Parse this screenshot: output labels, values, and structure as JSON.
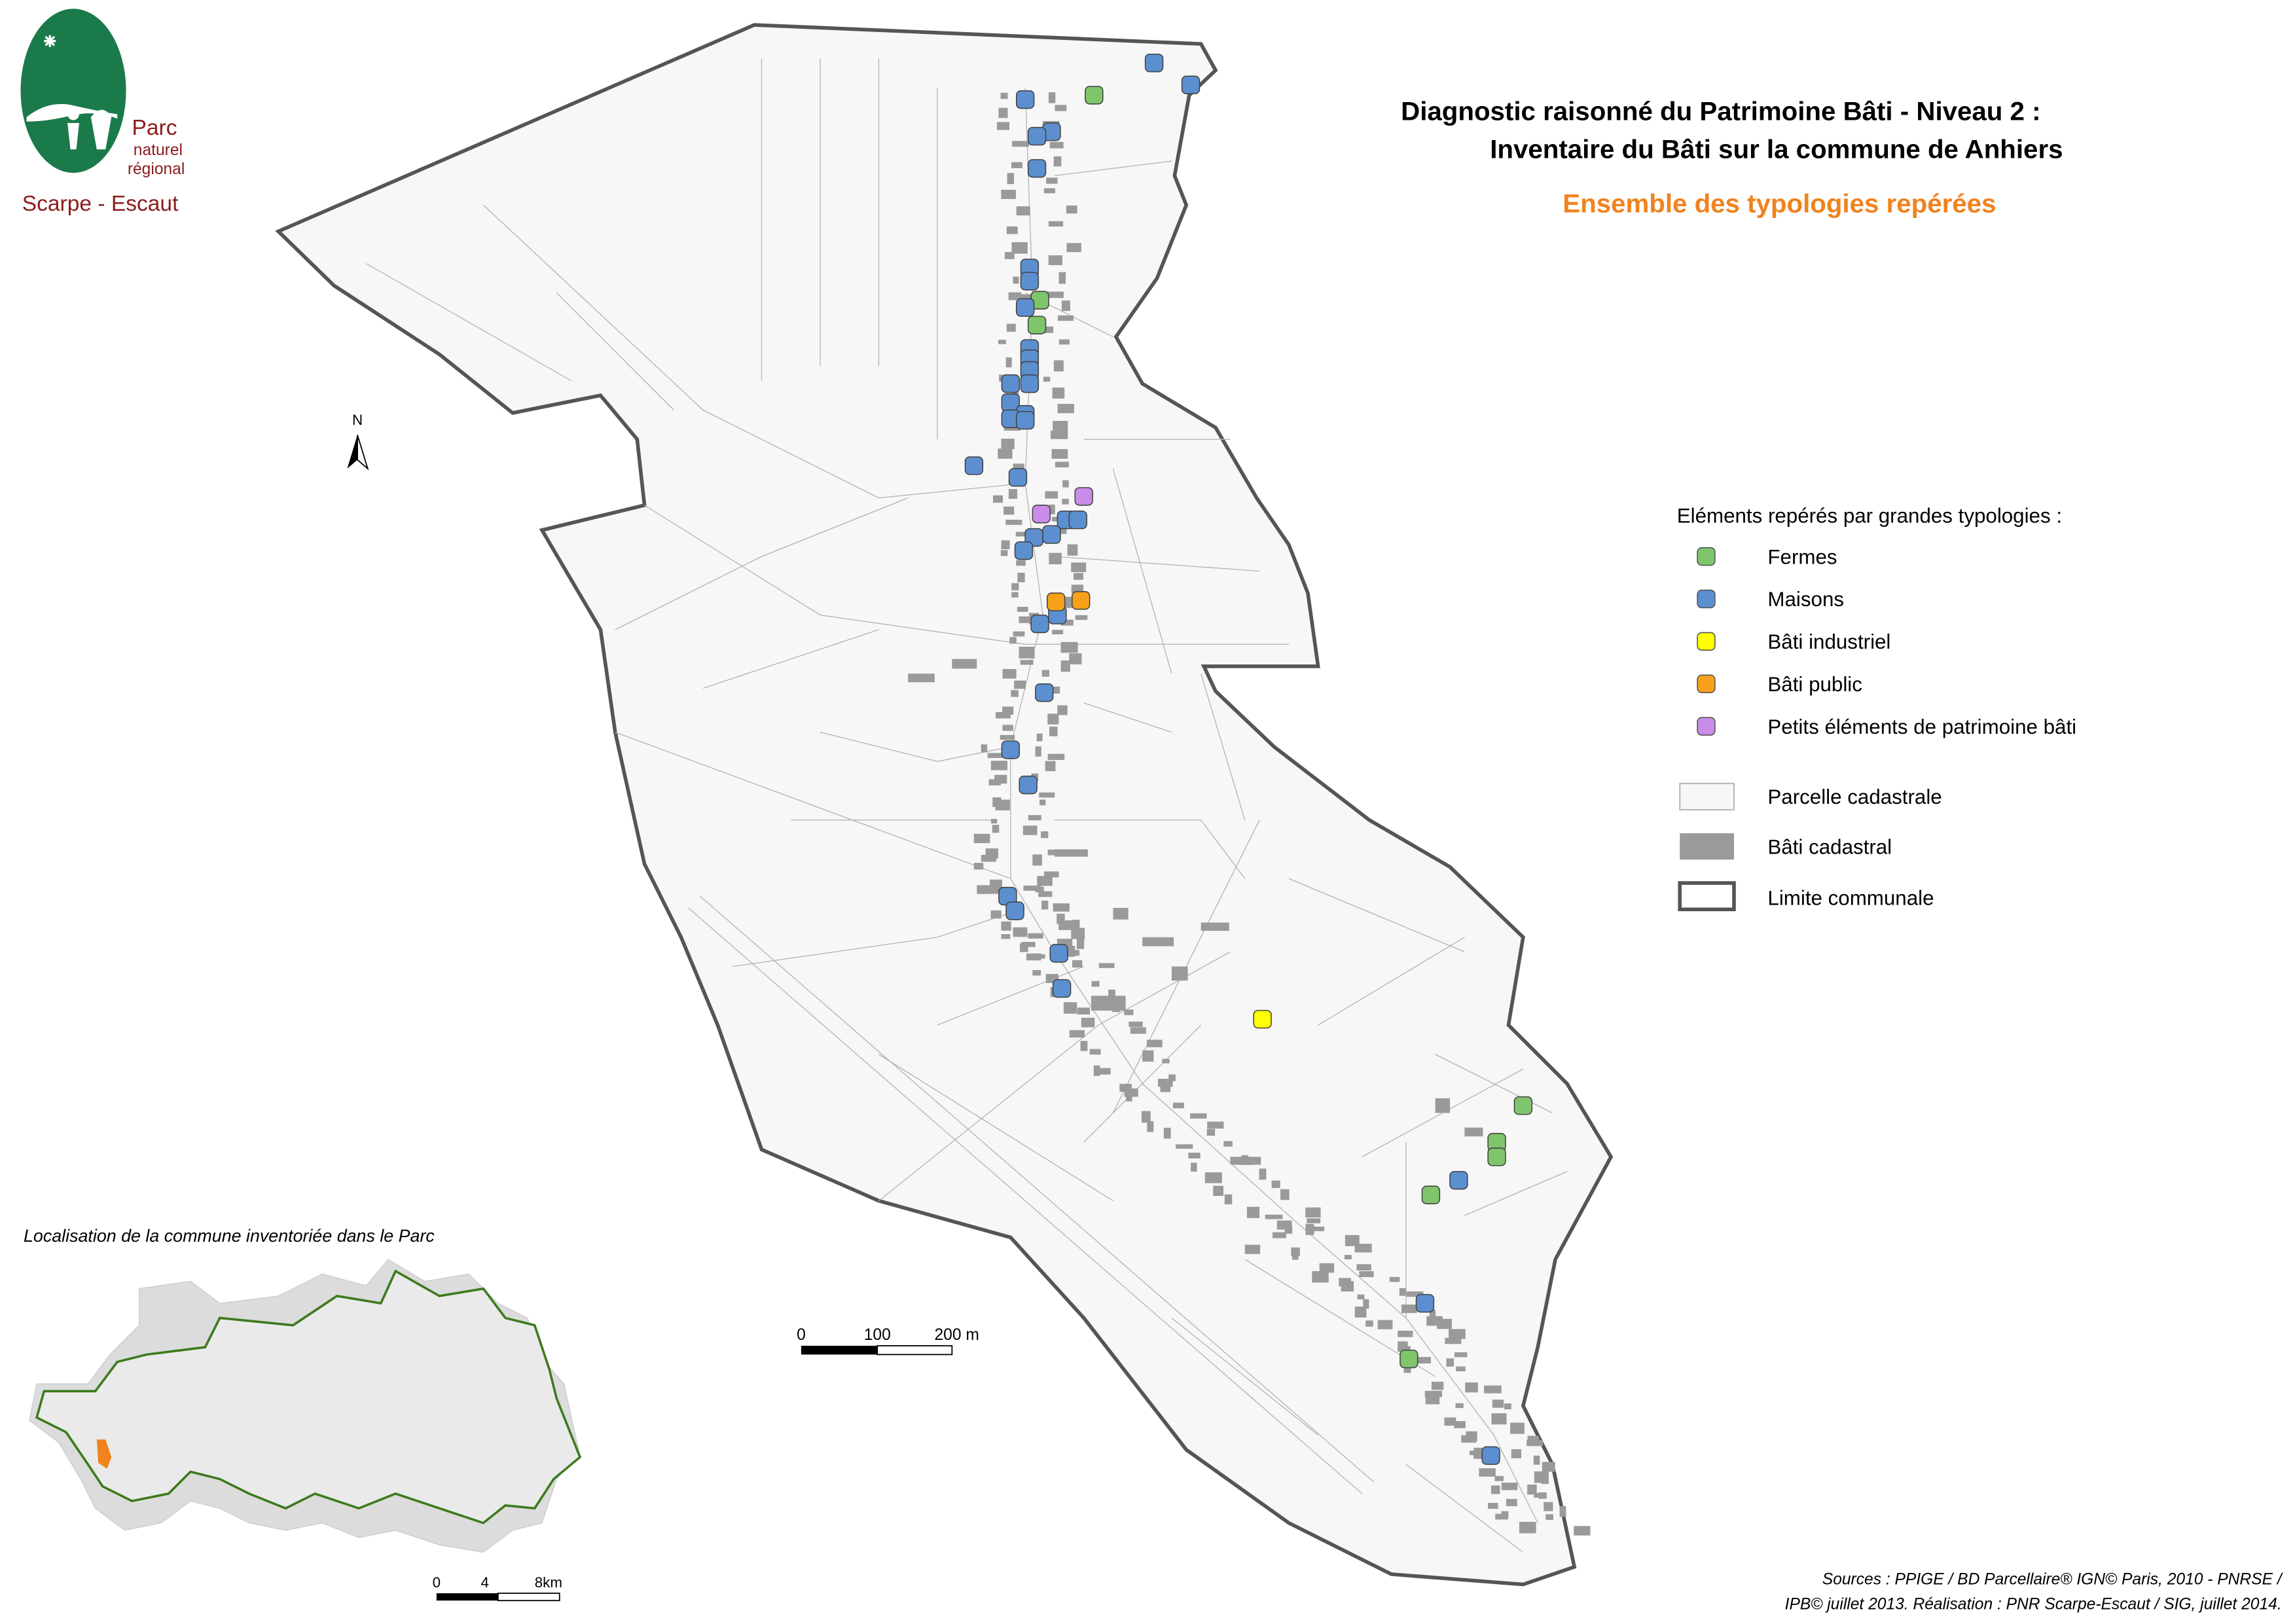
{
  "logo": {
    "lines": [
      "Parc",
      "naturel",
      "régional",
      "Scarpe - Escaut"
    ]
  },
  "title": {
    "lines": [
      "Diagnostic raisonné du Patrimoine Bâti - Niveau 2 :",
      "Inventaire du Bâti sur la commune de Anhiers"
    ],
    "subtitle": "Ensemble des typologies repérées"
  },
  "north": "N",
  "legend": {
    "title": "Eléments repérés par grandes typologies :",
    "points": [
      {
        "label": "Fermes",
        "color": "#7fc56c"
      },
      {
        "label": "Maisons",
        "color": "#5b8fd0"
      },
      {
        "label": "Bâti industriel",
        "color": "#ffff00"
      },
      {
        "label": "Bâti public",
        "color": "#f7a11a"
      },
      {
        "label": "Petits éléments de patrimoine bâti",
        "color": "#c98ce8"
      }
    ],
    "layers": [
      "Parcelle cadastrale",
      "Bâti cadastral",
      "Limite communale"
    ]
  },
  "scale_bar": {
    "labels": [
      "0",
      "100",
      "200 m"
    ]
  },
  "inset": {
    "title": "Localisation de la commune inventoriée dans le Parc",
    "scale_labels": [
      "0",
      "4",
      "8km"
    ]
  },
  "sources": [
    "Sources : PPIGE / BD Parcellaire® IGN© Paris, 2010 - PNRSE /",
    "IPB© juillet 2013. Réalisation : PNR Scarpe-Escaut / SIG, juillet 2014."
  ]
}
